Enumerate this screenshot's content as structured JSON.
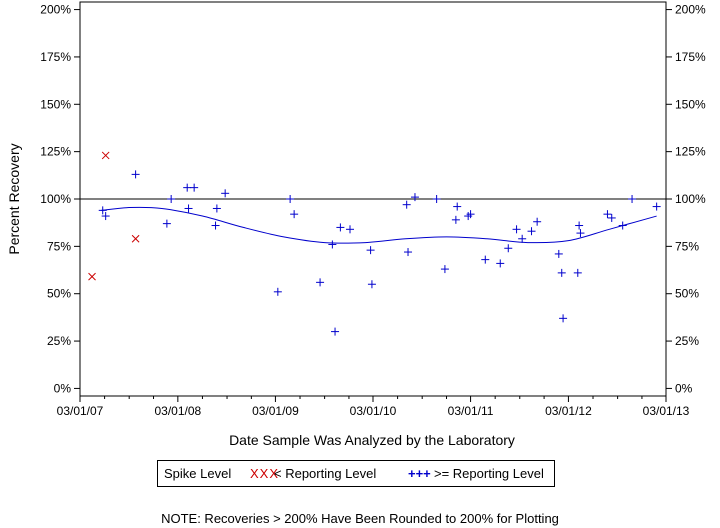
{
  "chart_data": {
    "type": "scatter",
    "xlabel": "Date Sample Was Analyzed by the Laboratory",
    "ylabel": "Percent Recovery",
    "x_ticks": [
      "03/01/07",
      "03/01/08",
      "03/01/09",
      "03/01/10",
      "03/01/11",
      "03/01/12",
      "03/01/13"
    ],
    "y_ticks": [
      "0%",
      "25%",
      "50%",
      "75%",
      "100%",
      "125%",
      "150%",
      "175%",
      "200%"
    ],
    "xlim": [
      "2007-03-01",
      "2013-03-01"
    ],
    "ylim": [
      -4,
      204
    ],
    "reference_line": 100,
    "grid": false,
    "series": [
      {
        "name": "< Reporting Level",
        "marker": "x",
        "color": "#cc0000",
        "points": [
          {
            "x": "2007-04-15",
            "y": 59
          },
          {
            "x": "2007-06-05",
            "y": 123
          },
          {
            "x": "2007-09-25",
            "y": 79
          }
        ]
      },
      {
        "name": ">= Reporting Level",
        "marker": "+",
        "color": "#0000cc",
        "points": [
          {
            "x": "2007-05-25",
            "y": 94
          },
          {
            "x": "2007-06-05",
            "y": 91
          },
          {
            "x": "2007-09-25",
            "y": 113
          },
          {
            "x": "2008-01-20",
            "y": 87
          },
          {
            "x": "2008-02-05",
            "y": 100
          },
          {
            "x": "2008-04-05",
            "y": 106
          },
          {
            "x": "2008-04-10",
            "y": 95
          },
          {
            "x": "2008-05-01",
            "y": 106
          },
          {
            "x": "2008-07-20",
            "y": 86
          },
          {
            "x": "2008-07-25",
            "y": 95
          },
          {
            "x": "2008-08-25",
            "y": 103
          },
          {
            "x": "2009-03-10",
            "y": 51
          },
          {
            "x": "2009-04-25",
            "y": 100
          },
          {
            "x": "2009-05-10",
            "y": 92
          },
          {
            "x": "2009-08-15",
            "y": 56
          },
          {
            "x": "2009-09-30",
            "y": 76
          },
          {
            "x": "2009-10-10",
            "y": 30
          },
          {
            "x": "2009-10-30",
            "y": 85
          },
          {
            "x": "2009-12-05",
            "y": 84
          },
          {
            "x": "2010-02-20",
            "y": 73
          },
          {
            "x": "2010-02-25",
            "y": 55
          },
          {
            "x": "2010-07-05",
            "y": 97
          },
          {
            "x": "2010-07-10",
            "y": 72
          },
          {
            "x": "2010-08-05",
            "y": 101
          },
          {
            "x": "2010-10-25",
            "y": 100
          },
          {
            "x": "2010-11-25",
            "y": 63
          },
          {
            "x": "2011-01-05",
            "y": 89
          },
          {
            "x": "2011-01-10",
            "y": 96
          },
          {
            "x": "2011-02-20",
            "y": 91
          },
          {
            "x": "2011-03-01",
            "y": 92
          },
          {
            "x": "2011-04-25",
            "y": 68
          },
          {
            "x": "2011-06-20",
            "y": 66
          },
          {
            "x": "2011-07-20",
            "y": 74
          },
          {
            "x": "2011-08-20",
            "y": 84
          },
          {
            "x": "2011-09-10",
            "y": 79
          },
          {
            "x": "2011-10-15",
            "y": 83
          },
          {
            "x": "2011-11-05",
            "y": 88
          },
          {
            "x": "2012-01-25",
            "y": 71
          },
          {
            "x": "2012-02-05",
            "y": 61
          },
          {
            "x": "2012-02-10",
            "y": 37
          },
          {
            "x": "2012-04-05",
            "y": 61
          },
          {
            "x": "2012-04-10",
            "y": 86
          },
          {
            "x": "2012-04-15",
            "y": 82
          },
          {
            "x": "2012-07-25",
            "y": 92
          },
          {
            "x": "2012-08-10",
            "y": 90
          },
          {
            "x": "2012-09-20",
            "y": 86
          },
          {
            "x": "2012-10-25",
            "y": 100
          },
          {
            "x": "2013-01-25",
            "y": 96
          }
        ]
      }
    ],
    "trend": {
      "color": "#0000cc",
      "points": [
        {
          "x": "2007-05-20",
          "y": 94
        },
        {
          "x": "2007-09-01",
          "y": 95.5
        },
        {
          "x": "2008-01-01",
          "y": 95
        },
        {
          "x": "2008-06-01",
          "y": 91
        },
        {
          "x": "2008-11-01",
          "y": 85
        },
        {
          "x": "2009-04-01",
          "y": 80
        },
        {
          "x": "2009-09-01",
          "y": 77
        },
        {
          "x": "2010-02-01",
          "y": 77
        },
        {
          "x": "2010-07-01",
          "y": 79
        },
        {
          "x": "2010-12-01",
          "y": 80
        },
        {
          "x": "2011-05-01",
          "y": 79
        },
        {
          "x": "2011-10-01",
          "y": 77
        },
        {
          "x": "2012-03-01",
          "y": 78
        },
        {
          "x": "2012-08-01",
          "y": 84
        },
        {
          "x": "2013-01-25",
          "y": 91
        }
      ]
    }
  },
  "legend": {
    "title": "Spike Level",
    "below_symbol": "XXX",
    "below_label": "< Reporting Level",
    "above_symbol": "+++",
    "above_label": ">= Reporting Level"
  },
  "note": "NOTE: Recoveries > 200% Have Been Rounded to 200% for Plotting"
}
